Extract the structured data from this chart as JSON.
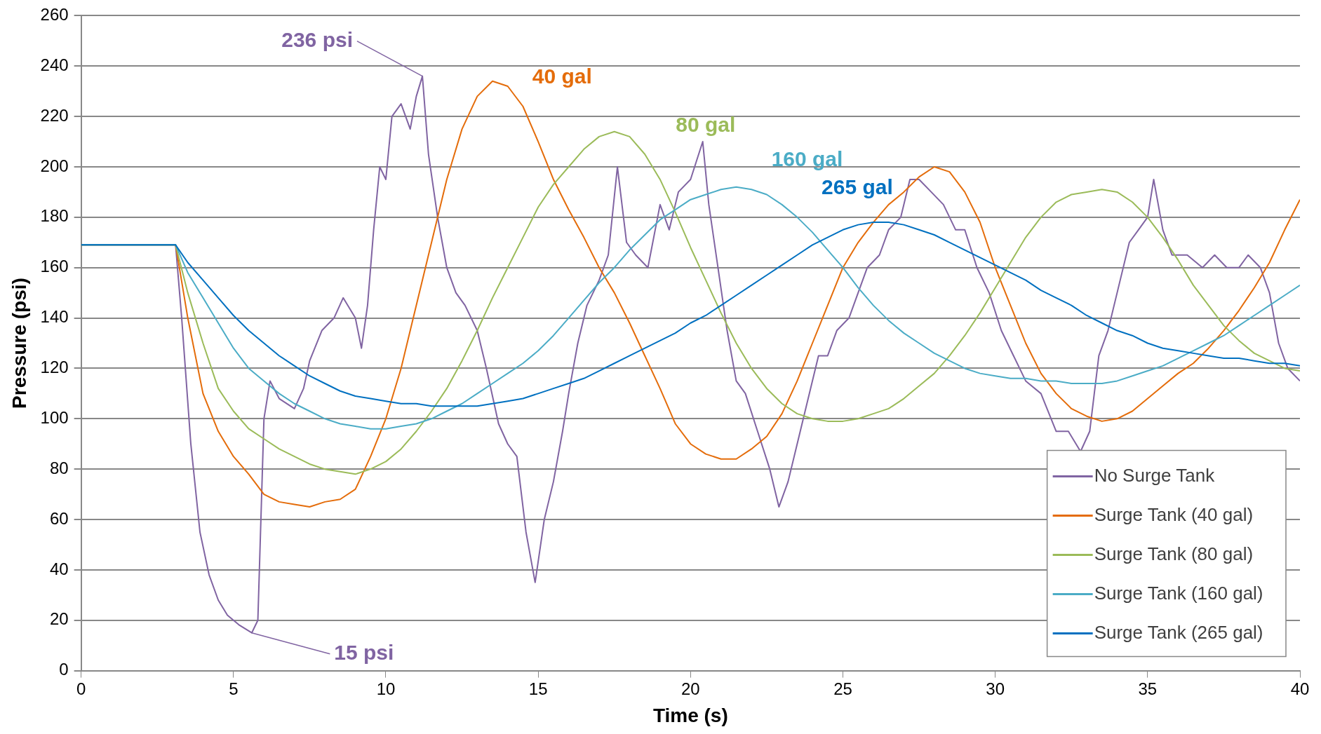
{
  "chart_data": {
    "type": "line",
    "xlabel": "Time (s)",
    "ylabel": "Pressure (psi)",
    "xlim": [
      0,
      40
    ],
    "xticks": [
      0,
      5,
      10,
      15,
      20,
      25,
      30,
      35,
      40
    ],
    "ylim": [
      0,
      260
    ],
    "yticks": [
      0,
      20,
      40,
      60,
      80,
      100,
      120,
      140,
      160,
      180,
      200,
      220,
      240,
      260
    ],
    "grid": "y",
    "legend": "bottom right",
    "marker": "none",
    "line_style": "solid",
    "annotations": [
      {
        "text": "236 psi",
        "x": 11.2,
        "y": 236
      },
      {
        "text": "15 psi",
        "x": 5.6,
        "y": 15
      },
      {
        "text": "40 gal",
        "x": 13.6,
        "y": 234
      },
      {
        "text": "80 gal",
        "x": 17.5,
        "y": 214
      },
      {
        "text": "160 gal",
        "x": 21.8,
        "y": 192
      },
      {
        "text": "265 gal",
        "x": 26.3,
        "y": 178
      }
    ],
    "series": [
      {
        "name": "No Surge Tank",
        "color": "#8064a2",
        "x": [
          0,
          3.1,
          3.3,
          3.6,
          3.9,
          4.2,
          4.5,
          4.8,
          5.2,
          5.6,
          5.8,
          5.9,
          6.0,
          6.2,
          6.5,
          7,
          7.3,
          7.5,
          7.9,
          8.3,
          8.6,
          9.0,
          9.2,
          9.4,
          9.6,
          9.8,
          10,
          10.2,
          10.5,
          10.8,
          11,
          11.2,
          11.4,
          11.7,
          12,
          12.3,
          12.6,
          13,
          13.3,
          13.7,
          14,
          14.3,
          14.6,
          14.9,
          15.2,
          15.5,
          15.8,
          16,
          16.3,
          16.6,
          17,
          17.3,
          17.6,
          17.9,
          18.2,
          18.6,
          19,
          19.3,
          19.6,
          20,
          20.4,
          20.6,
          20.9,
          21.2,
          21.5,
          21.8,
          22.2,
          22.6,
          22.9,
          23.2,
          23.5,
          23.8,
          24.2,
          24.5,
          24.8,
          25.2,
          25.5,
          25.8,
          26.2,
          26.5,
          26.9,
          27.2,
          27.5,
          27.9,
          28.3,
          28.7,
          29,
          29.4,
          29.8,
          30.2,
          30.6,
          31,
          31.5,
          32,
          32.4,
          32.8,
          33.1,
          33.4,
          33.7,
          34,
          34.4,
          34.7,
          35,
          35.2,
          35.5,
          35.8,
          36.3,
          36.8,
          37.2,
          37.6,
          38,
          38.3,
          38.7,
          39,
          39.3,
          39.6,
          40
        ],
        "values": [
          169,
          169,
          140,
          90,
          55,
          38,
          28,
          22,
          18,
          15,
          20,
          60,
          100,
          115,
          108,
          104,
          112,
          123,
          135,
          140,
          148,
          140,
          128,
          145,
          175,
          200,
          195,
          220,
          225,
          215,
          228,
          236,
          205,
          180,
          160,
          150,
          145,
          135,
          120,
          98,
          90,
          85,
          55,
          35,
          60,
          75,
          95,
          110,
          130,
          145,
          155,
          165,
          200,
          170,
          165,
          160,
          185,
          175,
          190,
          195,
          210,
          185,
          160,
          135,
          115,
          110,
          95,
          80,
          65,
          75,
          90,
          105,
          125,
          125,
          135,
          140,
          150,
          160,
          165,
          175,
          180,
          195,
          195,
          190,
          185,
          175,
          175,
          160,
          150,
          135,
          125,
          115,
          110,
          95,
          95,
          87,
          95,
          125,
          135,
          150,
          170,
          175,
          180,
          195,
          175,
          165,
          165,
          160,
          165,
          160,
          160,
          165,
          160,
          150,
          130,
          120,
          115
        ]
      },
      {
        "name": "Surge Tank (40 gal)",
        "color": "#e46c0a",
        "x": [
          0,
          3.1,
          3.5,
          4,
          4.5,
          5,
          5.5,
          6,
          6.5,
          7,
          7.5,
          8,
          8.5,
          9,
          9.5,
          10,
          10.5,
          11,
          11.5,
          12,
          12.5,
          13,
          13.5,
          14,
          14.5,
          15,
          15.5,
          16,
          16.5,
          17,
          17.5,
          18,
          18.5,
          19,
          19.5,
          20,
          20.5,
          21,
          21.5,
          22,
          22.5,
          23,
          23.5,
          24,
          24.5,
          25,
          25.5,
          26,
          26.5,
          27,
          27.5,
          28,
          28.5,
          29,
          29.5,
          30,
          30.5,
          31,
          31.5,
          32,
          32.5,
          33,
          33.5,
          34,
          34.5,
          35,
          35.5,
          36,
          36.5,
          37,
          37.5,
          38,
          38.5,
          39,
          39.5,
          40
        ],
        "values": [
          169,
          169,
          140,
          110,
          95,
          85,
          78,
          70,
          67,
          66,
          65,
          67,
          68,
          72,
          85,
          100,
          120,
          145,
          170,
          195,
          215,
          228,
          234,
          232,
          224,
          210,
          195,
          183,
          172,
          160,
          150,
          138,
          125,
          112,
          98,
          90,
          86,
          84,
          84,
          88,
          93,
          102,
          115,
          130,
          145,
          160,
          170,
          178,
          185,
          190,
          196,
          200,
          198,
          190,
          178,
          160,
          145,
          130,
          118,
          110,
          104,
          101,
          99,
          100,
          103,
          108,
          113,
          118,
          122,
          128,
          135,
          143,
          152,
          162,
          175,
          187
        ]
      },
      {
        "name": "Surge Tank (80 gal)",
        "color": "#9bbb59",
        "x": [
          0,
          3.1,
          3.5,
          4,
          4.5,
          5,
          5.5,
          6,
          6.5,
          7,
          7.5,
          8,
          8.5,
          9,
          9.5,
          10,
          10.5,
          11,
          11.5,
          12,
          12.5,
          13,
          13.5,
          14,
          14.5,
          15,
          15.5,
          16,
          16.5,
          17,
          17.5,
          18,
          18.5,
          19,
          19.5,
          20,
          20.5,
          21,
          21.5,
          22,
          22.5,
          23,
          23.5,
          24,
          24.5,
          25,
          25.5,
          26,
          26.5,
          27,
          27.5,
          28,
          28.5,
          29,
          29.5,
          30,
          30.5,
          31,
          31.5,
          32,
          32.5,
          33,
          33.5,
          34,
          34.5,
          35,
          35.5,
          36,
          36.5,
          37,
          37.5,
          38,
          38.5,
          39,
          39.5,
          40
        ],
        "values": [
          169,
          169,
          150,
          130,
          112,
          103,
          96,
          92,
          88,
          85,
          82,
          80,
          79,
          78,
          80,
          83,
          88,
          95,
          103,
          112,
          123,
          135,
          148,
          160,
          172,
          184,
          193,
          200,
          207,
          212,
          214,
          212,
          205,
          195,
          182,
          168,
          155,
          142,
          130,
          120,
          112,
          106,
          102,
          100,
          99,
          99,
          100,
          102,
          104,
          108,
          113,
          118,
          125,
          133,
          142,
          152,
          162,
          172,
          180,
          186,
          189,
          190,
          191,
          190,
          186,
          180,
          172,
          163,
          153,
          145,
          137,
          131,
          126,
          123,
          120,
          119
        ]
      },
      {
        "name": "Surge Tank (160 gal)",
        "color": "#4bacc6",
        "x": [
          0,
          3.1,
          3.5,
          4,
          4.5,
          5,
          5.5,
          6,
          6.5,
          7,
          7.5,
          8,
          8.5,
          9,
          9.5,
          10,
          10.5,
          11,
          11.5,
          12,
          12.5,
          13,
          13.5,
          14,
          14.5,
          15,
          15.5,
          16,
          16.5,
          17,
          17.5,
          18,
          18.5,
          19,
          19.5,
          20,
          20.5,
          21,
          21.5,
          22,
          22.5,
          23,
          23.5,
          24,
          24.5,
          25,
          25.5,
          26,
          26.5,
          27,
          27.5,
          28,
          28.5,
          29,
          29.5,
          30,
          30.5,
          31,
          31.5,
          32,
          32.5,
          33,
          33.5,
          34,
          34.5,
          35,
          35.5,
          36,
          36.5,
          37,
          37.5,
          38,
          38.5,
          39,
          39.5,
          40
        ],
        "values": [
          169,
          169,
          158,
          148,
          138,
          128,
          120,
          115,
          110,
          106,
          103,
          100,
          98,
          97,
          96,
          96,
          97,
          98,
          100,
          103,
          106,
          110,
          114,
          118,
          122,
          127,
          133,
          140,
          147,
          154,
          160,
          167,
          173,
          179,
          183,
          187,
          189,
          191,
          192,
          191,
          189,
          185,
          180,
          174,
          167,
          160,
          152,
          145,
          139,
          134,
          130,
          126,
          123,
          120,
          118,
          117,
          116,
          116,
          115,
          115,
          114,
          114,
          114,
          115,
          117,
          119,
          121,
          124,
          127,
          130,
          133,
          137,
          141,
          145,
          149,
          153
        ]
      },
      {
        "name": "Surge Tank (265 gal)",
        "color": "#0070c0",
        "x": [
          0,
          3.1,
          3.5,
          4,
          4.5,
          5,
          5.5,
          6,
          6.5,
          7,
          7.5,
          8,
          8.5,
          9,
          9.5,
          10,
          10.5,
          11,
          11.5,
          12,
          12.5,
          13,
          13.5,
          14,
          14.5,
          15,
          15.5,
          16,
          16.5,
          17,
          17.5,
          18,
          18.5,
          19,
          19.5,
          20,
          20.5,
          21,
          21.5,
          22,
          22.5,
          23,
          23.5,
          24,
          24.5,
          25,
          25.5,
          26,
          26.5,
          27,
          27.5,
          28,
          28.5,
          29,
          29.5,
          30,
          30.5,
          31,
          31.5,
          32,
          32.5,
          33,
          33.5,
          34,
          34.5,
          35,
          35.5,
          36,
          36.5,
          37,
          37.5,
          38,
          38.5,
          39,
          39.5,
          40
        ],
        "values": [
          169,
          169,
          162,
          155,
          148,
          141,
          135,
          130,
          125,
          121,
          117,
          114,
          111,
          109,
          108,
          107,
          106,
          106,
          105,
          105,
          105,
          105,
          106,
          107,
          108,
          110,
          112,
          114,
          116,
          119,
          122,
          125,
          128,
          131,
          134,
          138,
          141,
          145,
          149,
          153,
          157,
          161,
          165,
          169,
          172,
          175,
          177,
          178,
          178,
          177,
          175,
          173,
          170,
          167,
          164,
          161,
          158,
          155,
          151,
          148,
          145,
          141,
          138,
          135,
          133,
          130,
          128,
          127,
          126,
          125,
          124,
          124,
          123,
          122,
          122,
          121
        ]
      }
    ]
  }
}
